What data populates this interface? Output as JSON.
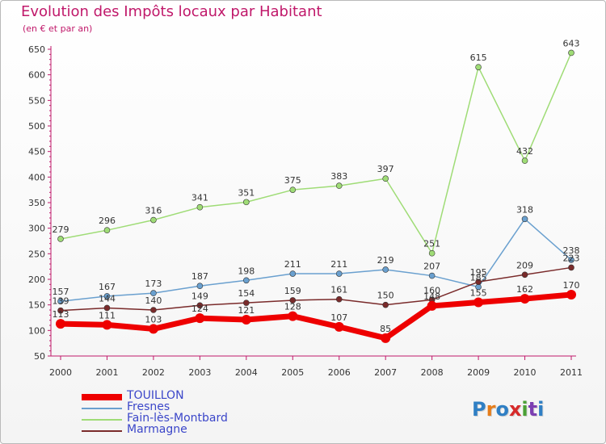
{
  "title": "Evolution des Impôts locaux par Habitant",
  "subtitle": "(en € et par an)",
  "logo": {
    "text": "Proxiti",
    "letter_colors": [
      "#2f7fc4",
      "#e67d1a",
      "#2f7fc4",
      "#d62a2a",
      "#4aa035",
      "#7c3fb2",
      "#2f7fc4"
    ]
  },
  "chart_data": {
    "type": "line",
    "x": [
      "2000",
      "2001",
      "2002",
      "2003",
      "2004",
      "2005",
      "2006",
      "2007",
      "2008",
      "2009",
      "2010",
      "2011"
    ],
    "ylim": [
      50,
      650
    ],
    "y_ticks": [
      50,
      100,
      150,
      200,
      250,
      300,
      350,
      400,
      450,
      500,
      550,
      600,
      650
    ],
    "grid": false,
    "legend_position": "bottom-left",
    "series": [
      {
        "name": "TOUILLON",
        "color": "#ee0000",
        "values": [
          113,
          111,
          103,
          124,
          121,
          128,
          107,
          85,
          148,
          155,
          162,
          170
        ]
      },
      {
        "name": "Fresnes",
        "color": "#6aa0cf",
        "values": [
          157,
          167,
          173,
          187,
          198,
          211,
          211,
          219,
          207,
          185,
          318,
          238
        ]
      },
      {
        "name": "Fain-lès-Montbard",
        "color": "#9fdc76",
        "values": [
          279,
          296,
          316,
          341,
          351,
          375,
          383,
          397,
          251,
          615,
          432,
          643
        ]
      },
      {
        "name": "Marmagne",
        "color": "#7a2b2b",
        "values": [
          139,
          144,
          140,
          149,
          154,
          159,
          161,
          150,
          160,
          195,
          209,
          223
        ]
      }
    ]
  }
}
